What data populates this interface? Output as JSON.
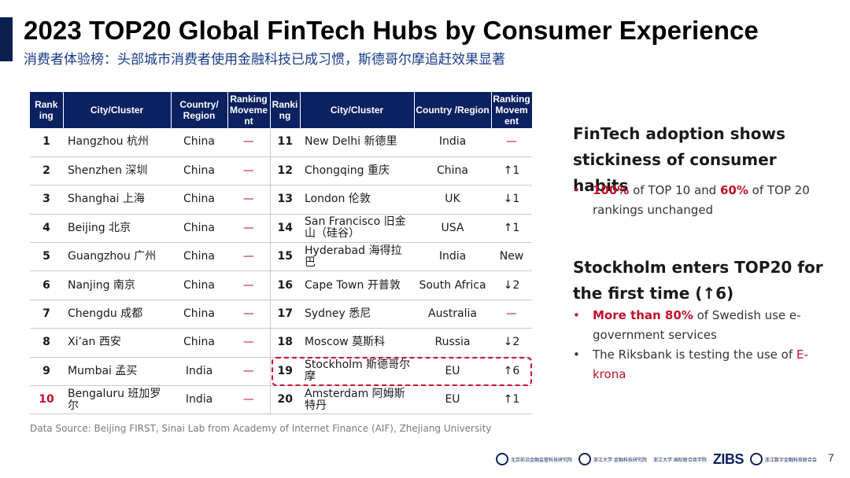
{
  "title": "2023 TOP20 Global FinTech Hubs by Consumer Experience",
  "subtitle": "消费者体验榜：头部城市消费者使用金融科技已成习惯，斯德哥尔摩追赶效果显著",
  "table": {
    "headers": [
      "Rank ing",
      "City/Cluster",
      "Country/ Region",
      "Ranking Moveme nt",
      "Ranki ng",
      "City/Cluster",
      "Country /Region",
      "Ranking Movem ent"
    ],
    "rows": [
      {
        "l_rank": "1",
        "l_city": "Hangzhou 杭州",
        "l_country": "China",
        "l_move": "—",
        "r_rank": "11",
        "r_city": "New Delhi 新德里",
        "r_country": "India",
        "r_move": "—"
      },
      {
        "l_rank": "2",
        "l_city": "Shenzhen 深圳",
        "l_country": "China",
        "l_move": "—",
        "r_rank": "12",
        "r_city": "Chongqing 重庆",
        "r_country": "China",
        "r_move": "↑1"
      },
      {
        "l_rank": "3",
        "l_city": "Shanghai 上海",
        "l_country": "China",
        "l_move": "—",
        "r_rank": "13",
        "r_city": "London 伦敦",
        "r_country": "UK",
        "r_move": "↓1"
      },
      {
        "l_rank": "4",
        "l_city": "Beijing 北京",
        "l_country": "China",
        "l_move": "—",
        "r_rank": "14",
        "r_city": "San Francisco 旧金山（硅谷）",
        "r_country": "USA",
        "r_move": "↑1"
      },
      {
        "l_rank": "5",
        "l_city": "Guangzhou 广州",
        "l_country": "China",
        "l_move": "—",
        "r_rank": "15",
        "r_city": "Hyderabad 海得拉巴",
        "r_country": "India",
        "r_move": "New"
      },
      {
        "l_rank": "6",
        "l_city": "Nanjing 南京",
        "l_country": "China",
        "l_move": "—",
        "r_rank": "16",
        "r_city": "Cape Town 开普敦",
        "r_country": "South Africa",
        "r_move": "↓2"
      },
      {
        "l_rank": "7",
        "l_city": "Chengdu 成都",
        "l_country": "China",
        "l_move": "—",
        "r_rank": "17",
        "r_city": "Sydney 悉尼",
        "r_country": "Australia",
        "r_move": "—"
      },
      {
        "l_rank": "8",
        "l_city": "Xi’an 西安",
        "l_country": "China",
        "l_move": "—",
        "r_rank": "18",
        "r_city": "Moscow 莫斯科",
        "r_country": "Russia",
        "r_move": "↓2"
      },
      {
        "l_rank": "9",
        "l_city": "Mumbai 孟买",
        "l_country": "India",
        "l_move": "—",
        "r_rank": "19",
        "r_city": "Stockholm 斯德哥尔摩",
        "r_country": "EU",
        "r_move": "↑6"
      },
      {
        "l_rank": "10",
        "l_city": "Bengaluru 班加罗尔",
        "l_country": "India",
        "l_move": "—",
        "r_rank": "20",
        "r_city": "Amsterdam 阿姆斯特丹",
        "r_country": "EU",
        "r_move": "↑1"
      }
    ]
  },
  "source": "Data Source: Beijing FIRST, Sinai Lab from Academy of Internet Finance (AIF), Zhejiang University",
  "panel1": {
    "heading": "FinTech adoption shows stickiness of consumer habits",
    "bullet": {
      "v1": "100%",
      "t1": " of TOP 10 and ",
      "v2": "60%",
      "t2": " of TOP 20 rankings unchanged"
    }
  },
  "panel2": {
    "heading": "Stockholm enters TOP20 for the first time (↑6)",
    "bullet1": {
      "hl": "More than 80%",
      "rest": " of Swedish use e-government services"
    },
    "bullet2": {
      "text": "The Riksbank is testing the use of ",
      "hl": "E-krona"
    }
  },
  "bullet_char": "•",
  "logos": {
    "first": "北京前沿金融监管科技研究院",
    "aif": "浙江大学 金融科技研究院",
    "ibs": "浙江大学 国际联合商学院",
    "zibs": "ZIBS",
    "assoc": "浙江数字金融科技联合会"
  },
  "page_number": "7",
  "colors": {
    "navy": "#0b2160",
    "red": "#c0102a"
  }
}
